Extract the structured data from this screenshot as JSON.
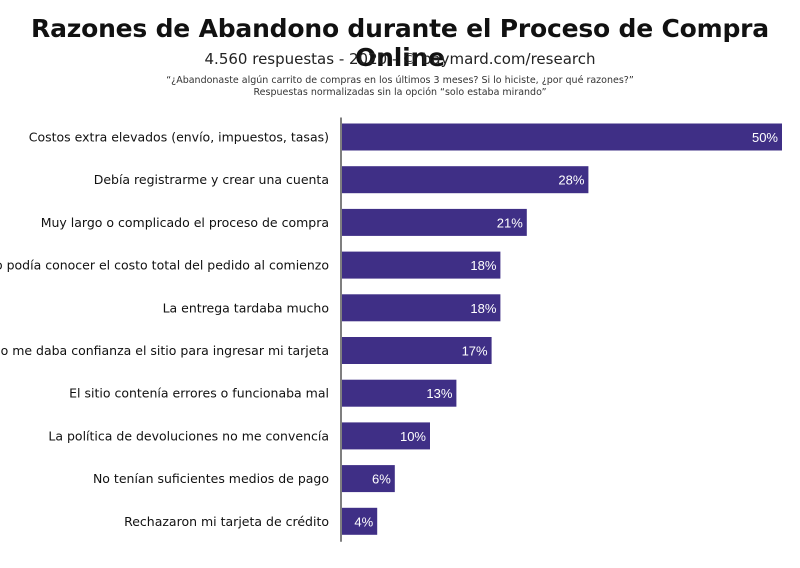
{
  "chart_data": {
    "type": "bar",
    "orientation": "horizontal",
    "title": "Razones de Abandono durante el Proceso de Compra Online",
    "subtitle": "4.560 respuestas - 2020 - © baymard.com/research",
    "question_line1": "“¿Abandonaste algún carrito de compras en los últimos 3 meses? Si lo hiciste, ¿por qué razones?”",
    "question_line2": "Respuestas normalizadas sin la opción “solo estaba mirando”",
    "categories": [
      "Costos extra elevados (envío, impuestos, tasas)",
      "Debía registrarme y crear una cuenta",
      "Muy largo o complicado el proceso de compra",
      "No podía conocer el costo total del pedido al comienzo",
      "La entrega tardaba mucho",
      "No me daba confianza el sitio para ingresar mi tarjeta",
      "El sitio contenía errores o funcionaba mal",
      "La política de devoluciones no me convencía",
      "No tenían suficientes medios de pago",
      "Rechazaron mi tarjeta de crédito"
    ],
    "values": [
      50,
      28,
      21,
      18,
      18,
      17,
      13,
      10,
      6,
      4
    ],
    "value_labels": [
      "50%",
      "28%",
      "21%",
      "18%",
      "18%",
      "17%",
      "13%",
      "10%",
      "6%",
      "4%"
    ],
    "xlim": [
      0,
      50
    ],
    "grid": false,
    "bar_color": "#3f2f86"
  }
}
